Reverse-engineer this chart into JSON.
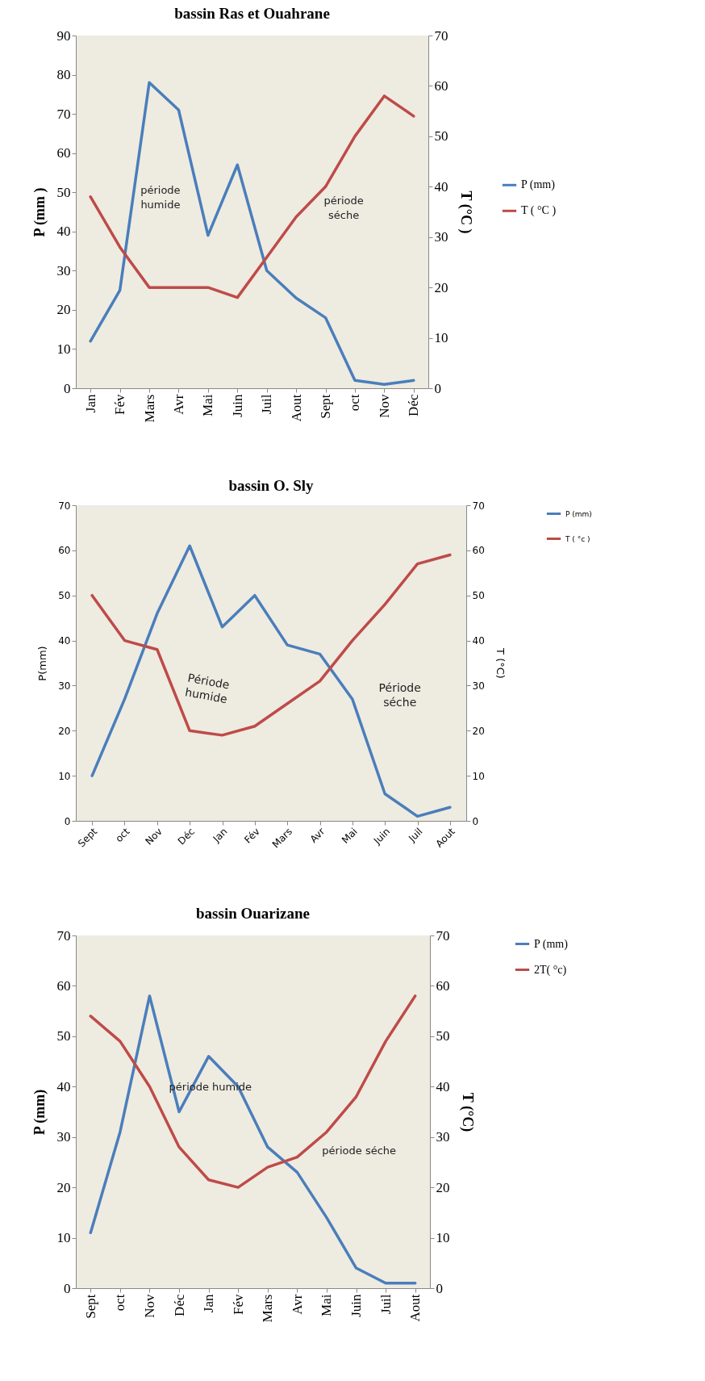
{
  "chart_data": [
    {
      "type": "line",
      "title": "bassin Ras et  Ouahrane",
      "ylabel": "P (mm )",
      "y2label": "T (°C )",
      "categories": [
        "Jan",
        "Fév",
        "Mars",
        "Avr",
        "Mai",
        "Juin",
        "Juil",
        "Aout",
        "Sept",
        "oct",
        "Nov",
        "Déc"
      ],
      "series": [
        {
          "name": "P (mm)",
          "color": "#4a7ebb",
          "values": [
            12,
            25,
            78,
            71,
            39,
            57,
            30,
            23,
            18,
            2,
            1,
            2
          ]
        },
        {
          "name": "T ( °C )",
          "color": "#be4b48",
          "axis": "y2",
          "values": [
            38,
            28,
            20,
            20,
            20,
            18,
            26,
            34,
            40,
            50,
            58,
            54
          ]
        }
      ],
      "ylim": [
        0,
        90
      ],
      "yticks": [
        0,
        10,
        20,
        30,
        40,
        50,
        60,
        70,
        80,
        90
      ],
      "y2lim": [
        0,
        70
      ],
      "y2ticks": [
        0,
        10,
        20,
        30,
        40,
        50,
        60,
        70
      ],
      "legend": "right",
      "annotations": [
        "période humide",
        "période séche"
      ]
    },
    {
      "type": "line",
      "title": "bassin O. Sly",
      "ylabel": "P(mm)",
      "y2label": "T (°C)",
      "categories": [
        "Sept",
        "oct",
        "Nov",
        "Déc",
        "Jan",
        "Fév",
        "Mars",
        "Avr",
        "Mai",
        "Juin",
        "Juil",
        "Aout"
      ],
      "series": [
        {
          "name": "P (mm)",
          "color": "#4a7ebb",
          "values": [
            10,
            27,
            46,
            61,
            43,
            50,
            39,
            37,
            27,
            6,
            1,
            3
          ]
        },
        {
          "name": "T ( °c )",
          "color": "#be4b48",
          "axis": "y2",
          "values": [
            50,
            40,
            38,
            20,
            19,
            21,
            26,
            31,
            40,
            48,
            57,
            59
          ]
        }
      ],
      "ylim": [
        0,
        70
      ],
      "yticks": [
        0,
        10,
        20,
        30,
        40,
        50,
        60,
        70
      ],
      "y2lim": [
        0,
        70
      ],
      "y2ticks": [
        0,
        10,
        20,
        30,
        40,
        50,
        60,
        70
      ],
      "legend": "top right",
      "annotations": [
        "Période humide",
        "Période séche"
      ]
    },
    {
      "type": "line",
      "title": "bassin Ouarizane",
      "ylabel": "P (mm)",
      "y2label": "T (°C)",
      "categories": [
        "Sept",
        "oct",
        "Nov",
        "Déc",
        "Jan",
        "Fév",
        "Mars",
        "Avr",
        "Mai",
        "Juin",
        "Juil",
        "Aout"
      ],
      "series": [
        {
          "name": "P (mm)",
          "color": "#4a7ebb",
          "values": [
            11,
            31,
            58,
            35,
            46,
            40,
            28,
            23,
            14,
            4,
            1,
            1
          ]
        },
        {
          "name": "2T( °c)",
          "color": "#be4b48",
          "axis": "y2",
          "values": [
            54,
            49,
            40,
            28,
            21.5,
            20,
            24,
            26,
            31,
            38,
            49,
            58
          ]
        }
      ],
      "ylim": [
        0,
        70
      ],
      "yticks": [
        0,
        10,
        20,
        30,
        40,
        50,
        60,
        70
      ],
      "y2lim": [
        0,
        70
      ],
      "y2ticks": [
        0,
        10,
        20,
        30,
        40,
        50,
        60,
        70
      ],
      "legend": "top right",
      "annotations": [
        "période humide",
        "période séche"
      ]
    }
  ]
}
